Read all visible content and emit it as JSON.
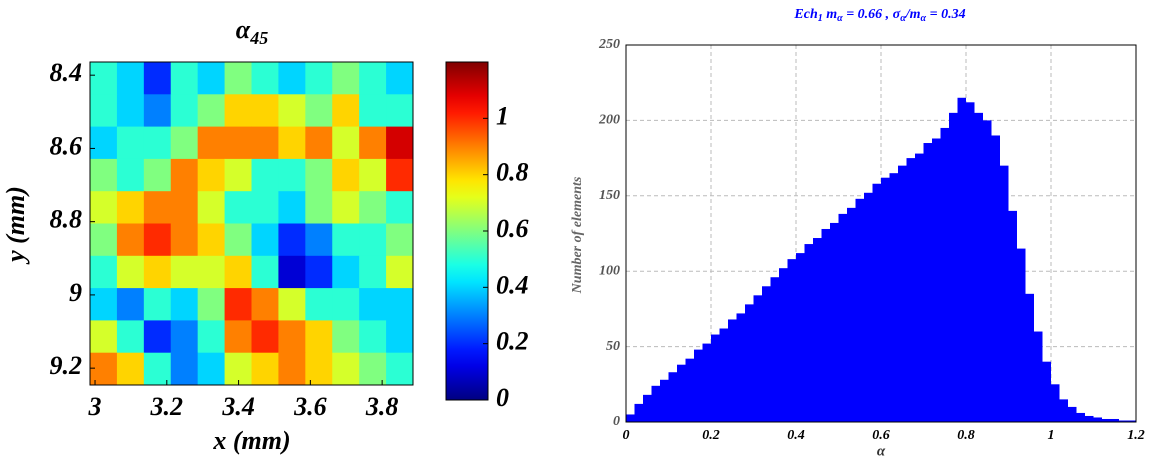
{
  "chart_data": [
    {
      "type": "heatmap",
      "title": [
        "α",
        "45"
      ],
      "xlabel": "x (mm)",
      "ylabel": "y (mm)",
      "xlim": [
        2.986,
        3.886
      ],
      "ylim": [
        8.364,
        9.246
      ],
      "y_reversed": true,
      "xticks": [
        3,
        3.2,
        3.4,
        3.6,
        3.8
      ],
      "yticks": [
        8.4,
        8.6,
        8.8,
        9,
        9.2
      ],
      "colormap": "jet",
      "clim": [
        0,
        1.2
      ],
      "cticks": [
        0,
        0.2,
        0.4,
        0.6,
        0.8,
        1
      ],
      "z": [
        [
          0.5,
          0.4,
          0.2,
          0.5,
          0.4,
          0.6,
          0.5,
          0.4,
          0.5,
          0.6,
          0.5,
          0.4
        ],
        [
          0.5,
          0.4,
          0.3,
          0.5,
          0.6,
          0.8,
          0.8,
          0.7,
          0.6,
          0.8,
          0.5,
          0.5
        ],
        [
          0.4,
          0.5,
          0.5,
          0.6,
          0.9,
          0.9,
          0.9,
          0.8,
          0.9,
          0.7,
          0.9,
          1.1
        ],
        [
          0.6,
          0.5,
          0.6,
          0.9,
          0.8,
          0.7,
          0.5,
          0.5,
          0.6,
          0.8,
          0.7,
          1.0
        ],
        [
          0.7,
          0.8,
          0.9,
          0.9,
          0.7,
          0.5,
          0.5,
          0.4,
          0.6,
          0.7,
          0.6,
          0.5
        ],
        [
          0.6,
          0.9,
          1.0,
          0.9,
          0.8,
          0.6,
          0.4,
          0.2,
          0.3,
          0.5,
          0.5,
          0.6
        ],
        [
          0.5,
          0.7,
          0.8,
          0.7,
          0.7,
          0.8,
          0.5,
          0.1,
          0.2,
          0.4,
          0.5,
          0.7
        ],
        [
          0.4,
          0.3,
          0.5,
          0.4,
          0.6,
          1.0,
          0.9,
          0.7,
          0.5,
          0.5,
          0.4,
          0.4
        ],
        [
          0.7,
          0.5,
          0.2,
          0.3,
          0.5,
          0.9,
          1.0,
          0.9,
          0.8,
          0.6,
          0.5,
          0.4
        ],
        [
          0.9,
          0.8,
          0.5,
          0.3,
          0.4,
          0.7,
          0.8,
          0.9,
          0.8,
          0.7,
          0.6,
          0.5
        ]
      ]
    },
    {
      "type": "histogram",
      "title": [
        "Ech",
        "1",
        " m",
        "α",
        " = 0.66 , σ",
        "α",
        "/m",
        "α",
        " = 0.34"
      ],
      "xlabel": "α",
      "ylabel": "Number of elements",
      "color": "#0000ff",
      "grid": true,
      "xlim": [
        0,
        1.2
      ],
      "ylim": [
        0,
        250
      ],
      "xticks": [
        0,
        0.2,
        0.4,
        0.6,
        0.8,
        1,
        1.2
      ],
      "yticks": [
        0,
        50,
        100,
        150,
        200,
        250
      ],
      "bins": [
        0,
        0.02,
        0.04,
        0.06,
        0.08,
        0.1,
        0.12,
        0.14,
        0.16,
        0.18,
        0.2,
        0.22,
        0.24,
        0.26,
        0.28,
        0.3,
        0.32,
        0.34,
        0.36,
        0.38,
        0.4,
        0.42,
        0.44,
        0.46,
        0.48,
        0.5,
        0.52,
        0.54,
        0.56,
        0.58,
        0.6,
        0.62,
        0.64,
        0.66,
        0.68,
        0.7,
        0.72,
        0.74,
        0.76,
        0.78,
        0.8,
        0.82,
        0.84,
        0.86,
        0.88,
        0.9,
        0.92,
        0.94,
        0.96,
        0.98,
        1,
        1.02,
        1.04,
        1.06,
        1.08,
        1.1,
        1.12,
        1.14,
        1.16,
        1.18,
        1.2
      ],
      "values": [
        5,
        12,
        18,
        24,
        28,
        33,
        38,
        42,
        48,
        52,
        58,
        62,
        68,
        72,
        78,
        84,
        90,
        96,
        102,
        108,
        112,
        118,
        122,
        128,
        132,
        138,
        142,
        148,
        152,
        158,
        162,
        165,
        170,
        175,
        178,
        185,
        188,
        195,
        205,
        215,
        212,
        205,
        200,
        190,
        170,
        140,
        115,
        85,
        60,
        40,
        25,
        15,
        10,
        6,
        4,
        3,
        2,
        2,
        1,
        1
      ]
    }
  ]
}
